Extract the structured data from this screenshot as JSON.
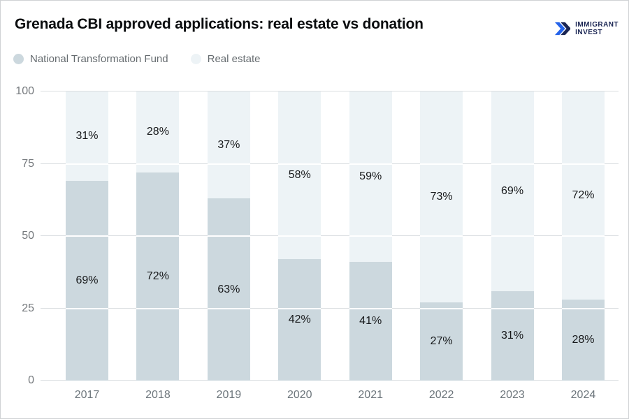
{
  "header": {
    "title": "Grenada CBI approved applications: real estate vs donation",
    "logo": {
      "line1": "IMMIGRANT",
      "line2": "INVEST"
    }
  },
  "legend": {
    "items": [
      {
        "label": "National Transformation Fund",
        "color": "#ccd8de"
      },
      {
        "label": "Real estate",
        "color": "#edf3f6"
      }
    ]
  },
  "chart_data": {
    "type": "bar",
    "stacked": true,
    "title": "Grenada CBI approved applications: real estate vs donation",
    "categories": [
      "2017",
      "2018",
      "2019",
      "2020",
      "2021",
      "2022",
      "2023",
      "2024"
    ],
    "series": [
      {
        "name": "National Transformation Fund",
        "color": "#ccd8de",
        "values": [
          69,
          72,
          63,
          42,
          41,
          27,
          31,
          28
        ],
        "labels": [
          "69%",
          "72%",
          "63%",
          "42%",
          "41%",
          "27%",
          "31%",
          "28%"
        ]
      },
      {
        "name": "Real estate",
        "color": "#edf3f6",
        "values": [
          31,
          28,
          37,
          58,
          59,
          73,
          69,
          72
        ],
        "labels": [
          "31%",
          "28%",
          "37%",
          "58%",
          "59%",
          "73%",
          "69%",
          "72%"
        ]
      }
    ],
    "ylim": [
      0,
      100
    ],
    "yticks": [
      0,
      25,
      50,
      75,
      100
    ],
    "grid": true,
    "inner_gridline_positions": [
      25,
      50,
      75
    ],
    "legend_position": "top-left",
    "xlabel": "",
    "ylabel": ""
  },
  "colors": {
    "ntf_segment": "#ccd8de",
    "real_estate_segment": "#edf3f6",
    "gridline": "#dadee1",
    "bar_gridline_overlay": "#ffffff",
    "axis_text": "#75797d",
    "segment_label_text": "#17191b",
    "title_text": "#0a0c0e",
    "logo_navy": "#1a2553",
    "logo_blue": "#2563ea"
  }
}
